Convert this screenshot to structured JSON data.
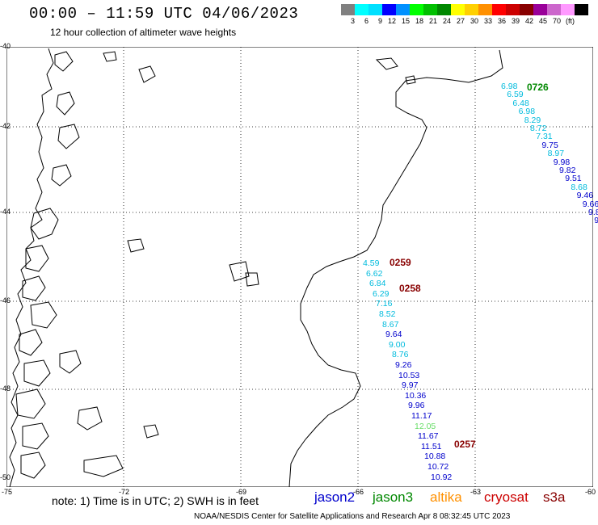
{
  "title": "00:00 – 11:59 UTC 04/06/2023",
  "subtitle": "12 hour collection of altimeter wave heights",
  "scale": {
    "colors": [
      "#808080",
      "#00ffff",
      "#00e0ff",
      "#0000ff",
      "#0090ff",
      "#00ff00",
      "#00c000",
      "#008800",
      "#ffff00",
      "#ffd000",
      "#ff9000",
      "#ff0000",
      "#cc0000",
      "#880000",
      "#990099",
      "#cc66cc",
      "#ff99ff",
      "#000000"
    ],
    "labels": [
      "3",
      "6",
      "9",
      "12",
      "15",
      "18",
      "21",
      "24",
      "27",
      "30",
      "33",
      "36",
      "39",
      "42",
      "45",
      "70",
      "(ft)"
    ]
  },
  "lat_labels": [
    "-40",
    "-42",
    "-44",
    "-46",
    "-48",
    "-50"
  ],
  "lon_labels": [
    "-75",
    "-72",
    "-69",
    "-66",
    "-63",
    "-60"
  ],
  "passes": [
    {
      "label": "0726",
      "color": "#008800"
    },
    {
      "label": "0259",
      "color": "#880000"
    },
    {
      "label": "0258",
      "color": "#880000"
    },
    {
      "label": "0257",
      "color": "#880000"
    }
  ],
  "track_a": [
    {
      "v": "6.98",
      "c": "#00bbdd"
    },
    {
      "v": "6.59",
      "c": "#00bbdd"
    },
    {
      "v": "6.48",
      "c": "#00bbdd"
    },
    {
      "v": "6.98",
      "c": "#00bbdd"
    },
    {
      "v": "8.29",
      "c": "#00bbdd"
    },
    {
      "v": "8.72",
      "c": "#00bbdd"
    },
    {
      "v": "7.31",
      "c": "#00bbdd"
    },
    {
      "v": "9.75",
      "c": "#0000cc"
    },
    {
      "v": "8.97",
      "c": "#00bbdd"
    },
    {
      "v": "9.98",
      "c": "#0000cc"
    },
    {
      "v": "9.82",
      "c": "#0000cc"
    },
    {
      "v": "9.51",
      "c": "#0000cc"
    },
    {
      "v": "8.68",
      "c": "#00bbdd"
    },
    {
      "v": "9.46",
      "c": "#0000cc"
    },
    {
      "v": "9.66",
      "c": "#0000cc"
    },
    {
      "v": "9.8",
      "c": "#0000cc"
    },
    {
      "v": "9.",
      "c": "#0000cc"
    }
  ],
  "track_b": [
    {
      "v": "4.59",
      "c": "#00bbdd"
    },
    {
      "v": "6.62",
      "c": "#00bbdd"
    },
    {
      "v": "6.84",
      "c": "#00bbdd"
    },
    {
      "v": "6.29",
      "c": "#00bbdd"
    },
    {
      "v": "7.16",
      "c": "#00bbdd"
    },
    {
      "v": "8.52",
      "c": "#00bbdd"
    },
    {
      "v": "8.67",
      "c": "#00bbdd"
    },
    {
      "v": "9.64",
      "c": "#0000cc"
    },
    {
      "v": "9.00",
      "c": "#00bbdd"
    },
    {
      "v": "8.76",
      "c": "#00bbdd"
    },
    {
      "v": "9.26",
      "c": "#0000cc"
    },
    {
      "v": "10.53",
      "c": "#0000cc"
    },
    {
      "v": "9.97",
      "c": "#0000cc"
    },
    {
      "v": "10.36",
      "c": "#0000cc"
    },
    {
      "v": "9.96",
      "c": "#0000cc"
    },
    {
      "v": "11.17",
      "c": "#0000cc"
    },
    {
      "v": "12.05",
      "c": "#66dd66"
    },
    {
      "v": "11.67",
      "c": "#0000cc"
    },
    {
      "v": "11.51",
      "c": "#0000cc"
    },
    {
      "v": "10.88",
      "c": "#0000cc"
    },
    {
      "v": "10.72",
      "c": "#0000cc"
    },
    {
      "v": "10.92",
      "c": "#0000cc"
    }
  ],
  "note": "note:  1) Time is in UTC;  2) SWH is in feet",
  "satellites": [
    {
      "name": "jason2",
      "color": "#0000cc"
    },
    {
      "name": "jason3",
      "color": "#008800"
    },
    {
      "name": "altika",
      "color": "#ff9000"
    },
    {
      "name": "cryosat",
      "color": "#cc0000"
    },
    {
      "name": "s3a",
      "color": "#880000"
    }
  ],
  "footer": "NOAA/NESDIS Center for Satellite Applications and Research    Apr  8 08:32:45 UTC 2023"
}
